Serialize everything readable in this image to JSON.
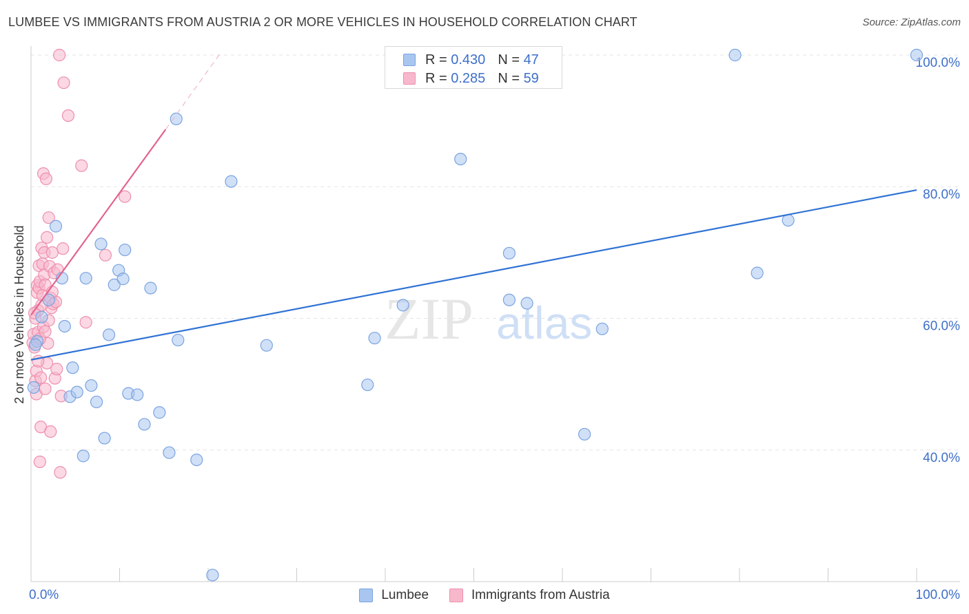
{
  "title": "LUMBEE VS IMMIGRANTS FROM AUSTRIA 2 OR MORE VEHICLES IN HOUSEHOLD CORRELATION CHART",
  "source": "Source: ZipAtlas.com",
  "watermark": {
    "zip": "ZIP",
    "atlas": "atlas"
  },
  "legend": {
    "rows": [
      {
        "r_label": "R = ",
        "r_value": "0.430",
        "n_label": "N = ",
        "n_value": "47"
      },
      {
        "r_label": "R = ",
        "r_value": "0.285",
        "n_label": "N = ",
        "n_value": "59"
      }
    ]
  },
  "chart_data": {
    "type": "scatter",
    "title": "LUMBEE VS IMMIGRANTS FROM AUSTRIA 2 OR MORE VEHICLES IN HOUSEHOLD CORRELATION CHART",
    "xlabel": "",
    "ylabel": "2 or more Vehicles in Household",
    "xlim": [
      0,
      100
    ],
    "ylim": [
      20,
      100
    ],
    "x_tick_labels": [
      {
        "value": 0,
        "label": "0.0%"
      },
      {
        "value": 100,
        "label": "100.0%"
      }
    ],
    "y_tick_labels": [
      {
        "value": 40,
        "label": "40.0%"
      },
      {
        "value": 60,
        "label": "60.0%"
      },
      {
        "value": 80,
        "label": "80.0%"
      },
      {
        "value": 100,
        "label": "100.0%"
      }
    ],
    "grid": true,
    "legend_position": "top-center",
    "colors": {
      "lumbee_fill": "#a9c6f0",
      "lumbee_stroke": "#7aa3e0",
      "lumbee_line": "#2f72d4",
      "austria_fill": "#f7b8cc",
      "austria_stroke": "#ee8fad",
      "austria_line": "#e2648f"
    },
    "series": [
      {
        "name": "Lumbee",
        "r": 0.43,
        "n": 47,
        "trend": {
          "x0": 0,
          "y0": 53.7,
          "x1": 100,
          "y1": 79.5
        },
        "points": [
          {
            "x": 0.3,
            "y": 49.5
          },
          {
            "x": 0.7,
            "y": 56.5
          },
          {
            "x": 1.2,
            "y": 60.2
          },
          {
            "x": 2.0,
            "y": 62.8
          },
          {
            "x": 2.8,
            "y": 74.0
          },
          {
            "x": 3.5,
            "y": 66.1
          },
          {
            "x": 3.8,
            "y": 58.8
          },
          {
            "x": 4.4,
            "y": 48.1
          },
          {
            "x": 4.7,
            "y": 52.5
          },
          {
            "x": 5.2,
            "y": 48.8
          },
          {
            "x": 5.9,
            "y": 39.1
          },
          {
            "x": 6.2,
            "y": 66.1
          },
          {
            "x": 6.8,
            "y": 49.8
          },
          {
            "x": 7.4,
            "y": 47.3
          },
          {
            "x": 7.9,
            "y": 71.3
          },
          {
            "x": 8.3,
            "y": 41.8
          },
          {
            "x": 8.8,
            "y": 57.5
          },
          {
            "x": 9.4,
            "y": 65.1
          },
          {
            "x": 9.9,
            "y": 67.3
          },
          {
            "x": 10.4,
            "y": 66.0
          },
          {
            "x": 10.6,
            "y": 70.4
          },
          {
            "x": 11.0,
            "y": 48.6
          },
          {
            "x": 12.0,
            "y": 48.4
          },
          {
            "x": 12.8,
            "y": 43.9
          },
          {
            "x": 13.5,
            "y": 64.6
          },
          {
            "x": 14.5,
            "y": 45.7
          },
          {
            "x": 15.6,
            "y": 39.6
          },
          {
            "x": 16.4,
            "y": 90.3
          },
          {
            "x": 16.6,
            "y": 56.7
          },
          {
            "x": 18.7,
            "y": 38.5
          },
          {
            "x": 20.5,
            "y": 21.0
          },
          {
            "x": 22.6,
            "y": 80.8
          },
          {
            "x": 26.6,
            "y": 55.9
          },
          {
            "x": 38.0,
            "y": 49.9
          },
          {
            "x": 38.8,
            "y": 57.0
          },
          {
            "x": 42.0,
            "y": 62.0
          },
          {
            "x": 48.5,
            "y": 84.2
          },
          {
            "x": 54.0,
            "y": 69.9
          },
          {
            "x": 54.0,
            "y": 62.8
          },
          {
            "x": 56.0,
            "y": 62.3
          },
          {
            "x": 62.5,
            "y": 42.4
          },
          {
            "x": 64.5,
            "y": 58.4
          },
          {
            "x": 79.5,
            "y": 100.0
          },
          {
            "x": 82.0,
            "y": 66.9
          },
          {
            "x": 85.5,
            "y": 74.9
          },
          {
            "x": 100.0,
            "y": 100.0
          },
          {
            "x": 0.5,
            "y": 56.0
          }
        ]
      },
      {
        "name": "Immigrants from Austria",
        "r": 0.285,
        "n": 59,
        "trend": {
          "x0": 0,
          "y0": 60.5,
          "x1": 15.2,
          "y1": 88.7
        },
        "trend_dashed": {
          "x0": 15.2,
          "y0": 88.7,
          "x1": 21.5,
          "y1": 100.5
        },
        "points": [
          {
            "x": 0.2,
            "y": 56.3
          },
          {
            "x": 0.3,
            "y": 57.6
          },
          {
            "x": 0.4,
            "y": 55.6
          },
          {
            "x": 0.5,
            "y": 60.0
          },
          {
            "x": 0.5,
            "y": 50.5
          },
          {
            "x": 0.6,
            "y": 48.5
          },
          {
            "x": 0.6,
            "y": 52.0
          },
          {
            "x": 0.7,
            "y": 65.0
          },
          {
            "x": 0.7,
            "y": 63.9
          },
          {
            "x": 0.8,
            "y": 61.2
          },
          {
            "x": 0.8,
            "y": 57.9
          },
          {
            "x": 0.9,
            "y": 68.0
          },
          {
            "x": 0.9,
            "y": 64.6
          },
          {
            "x": 1.0,
            "y": 65.6
          },
          {
            "x": 1.0,
            "y": 38.2
          },
          {
            "x": 1.1,
            "y": 43.5
          },
          {
            "x": 1.1,
            "y": 51.0
          },
          {
            "x": 1.2,
            "y": 70.7
          },
          {
            "x": 1.3,
            "y": 68.3
          },
          {
            "x": 1.3,
            "y": 63.5
          },
          {
            "x": 1.4,
            "y": 58.7
          },
          {
            "x": 1.4,
            "y": 82.0
          },
          {
            "x": 1.5,
            "y": 70.0
          },
          {
            "x": 1.5,
            "y": 66.6
          },
          {
            "x": 1.6,
            "y": 65.1
          },
          {
            "x": 1.6,
            "y": 49.3
          },
          {
            "x": 1.7,
            "y": 81.2
          },
          {
            "x": 1.8,
            "y": 72.3
          },
          {
            "x": 1.8,
            "y": 53.2
          },
          {
            "x": 1.9,
            "y": 56.2
          },
          {
            "x": 2.0,
            "y": 75.3
          },
          {
            "x": 2.1,
            "y": 67.9
          },
          {
            "x": 2.2,
            "y": 63.1
          },
          {
            "x": 2.2,
            "y": 42.8
          },
          {
            "x": 2.3,
            "y": 61.6
          },
          {
            "x": 2.4,
            "y": 70.0
          },
          {
            "x": 2.5,
            "y": 62.2
          },
          {
            "x": 2.6,
            "y": 66.9
          },
          {
            "x": 2.7,
            "y": 50.9
          },
          {
            "x": 2.8,
            "y": 62.5
          },
          {
            "x": 2.9,
            "y": 52.3
          },
          {
            "x": 3.0,
            "y": 67.4
          },
          {
            "x": 3.2,
            "y": 100.0
          },
          {
            "x": 3.3,
            "y": 36.6
          },
          {
            "x": 3.4,
            "y": 48.2
          },
          {
            "x": 3.6,
            "y": 70.6
          },
          {
            "x": 3.7,
            "y": 95.8
          },
          {
            "x": 4.2,
            "y": 90.8
          },
          {
            "x": 5.7,
            "y": 83.2
          },
          {
            "x": 6.2,
            "y": 59.4
          },
          {
            "x": 8.4,
            "y": 69.6
          },
          {
            "x": 10.6,
            "y": 78.5
          },
          {
            "x": 0.4,
            "y": 60.8
          },
          {
            "x": 1.0,
            "y": 56.9
          },
          {
            "x": 2.0,
            "y": 59.7
          },
          {
            "x": 0.8,
            "y": 53.5
          },
          {
            "x": 1.2,
            "y": 62.0
          },
          {
            "x": 2.4,
            "y": 64.0
          },
          {
            "x": 1.6,
            "y": 58.0
          }
        ]
      }
    ]
  }
}
